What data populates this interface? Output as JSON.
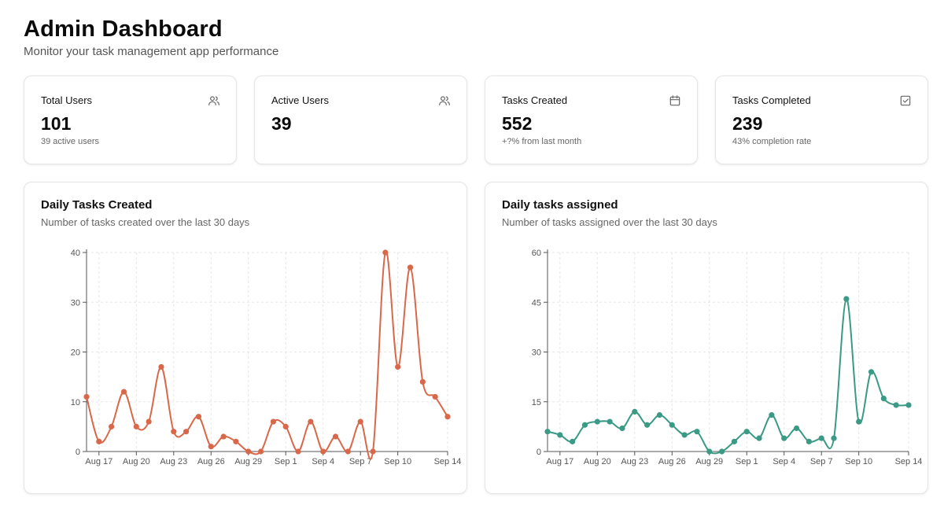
{
  "header": {
    "title": "Admin Dashboard",
    "subtitle": "Monitor your task management app performance"
  },
  "stats": [
    {
      "label": "Total Users",
      "value": "101",
      "sub": "39 active users",
      "icon": "users-icon"
    },
    {
      "label": "Active Users",
      "value": "39",
      "sub": "",
      "icon": "users-icon"
    },
    {
      "label": "Tasks Created",
      "value": "552",
      "sub": "+?% from last month",
      "icon": "calendar-icon"
    },
    {
      "label": "Tasks Completed",
      "value": "239",
      "sub": "43% completion rate",
      "icon": "check-square-icon"
    }
  ],
  "chart_data": [
    {
      "type": "line",
      "title": "Daily Tasks Created",
      "subtitle": "Number of tasks created over the last 30 days",
      "color": "#d9684a",
      "xlabels": [
        "Aug 17",
        "Aug 20",
        "Aug 23",
        "Aug 26",
        "Aug 29",
        "Sep 1",
        "Sep 4",
        "Sep 7",
        "Sep 10",
        "Sep 14"
      ],
      "xlabel_index": [
        1,
        4,
        7,
        10,
        13,
        16,
        19,
        22,
        25,
        29
      ],
      "values": [
        11,
        2,
        5,
        12,
        5,
        6,
        17,
        4,
        4,
        7,
        1,
        3,
        2,
        0,
        0,
        6,
        5,
        0,
        6,
        0,
        3,
        0,
        6,
        0,
        40,
        17,
        37,
        14,
        11,
        7
      ],
      "yticks": [
        0,
        10,
        20,
        30,
        40
      ],
      "ylim": [
        0,
        40
      ]
    },
    {
      "type": "line",
      "title": "Daily tasks assigned",
      "subtitle": "Number of tasks assigned over the last 30 days",
      "color": "#3a9a86",
      "xlabels": [
        "Aug 17",
        "Aug 20",
        "Aug 23",
        "Aug 26",
        "Aug 29",
        "Sep 1",
        "Sep 4",
        "Sep 7",
        "Sep 10",
        "Sep 14"
      ],
      "xlabel_index": [
        1,
        4,
        7,
        10,
        13,
        16,
        19,
        22,
        25,
        29
      ],
      "values": [
        6,
        5,
        3,
        8,
        9,
        9,
        7,
        12,
        8,
        11,
        8,
        5,
        6,
        0,
        0,
        3,
        6,
        4,
        11,
        4,
        7,
        3,
        4,
        4,
        46,
        9,
        24,
        16,
        14,
        14
      ],
      "yticks": [
        0,
        15,
        30,
        45,
        60
      ],
      "ylim": [
        0,
        60
      ]
    }
  ]
}
